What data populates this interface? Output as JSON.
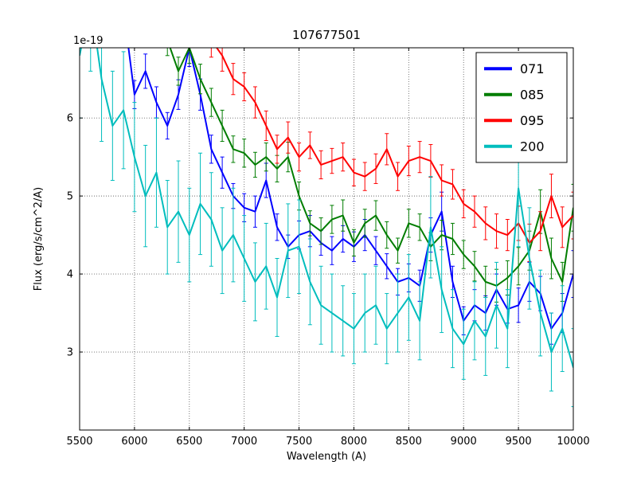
{
  "figure": {
    "background": "#ffffff",
    "frame_color": "#000000",
    "grid_color": "#6a6a6a"
  },
  "chart_data": {
    "type": "line",
    "title": "107677501",
    "xlabel": "Wavelength (A)",
    "ylabel": "Flux (erg/s/cm^2/A)",
    "y_offset_text": "1e-19",
    "y_unit_scale": "1e-19",
    "xlim": [
      5500,
      10000
    ],
    "ylim": [
      2.0,
      6.9
    ],
    "xticks": [
      5500,
      6000,
      6500,
      7000,
      7500,
      8000,
      8500,
      9000,
      9500,
      10000
    ],
    "yticks": [
      3,
      4,
      5,
      6
    ],
    "grid": true,
    "error_bars": true,
    "legend": {
      "position": "upper right",
      "entries": [
        "071",
        "085",
        "095",
        "200"
      ]
    },
    "series": [
      {
        "name": "071",
        "color": "#0000ff",
        "x": [
          5900,
          6000,
          6100,
          6200,
          6300,
          6400,
          6500,
          6600,
          6700,
          6800,
          6900,
          7000,
          7100,
          7200,
          7300,
          7400,
          7500,
          7600,
          7700,
          7800,
          7900,
          8000,
          8100,
          8200,
          8300,
          8400,
          8500,
          8600,
          8700,
          8800,
          8900,
          9000,
          9100,
          9200,
          9300,
          9400,
          9500,
          9600,
          9700,
          9800,
          9900,
          10000
        ],
        "y": [
          7.4,
          6.3,
          6.6,
          6.2,
          5.9,
          6.3,
          6.9,
          6.3,
          5.6,
          5.3,
          5.0,
          4.85,
          4.8,
          5.2,
          4.6,
          4.35,
          4.5,
          4.55,
          4.4,
          4.3,
          4.45,
          4.35,
          4.5,
          4.3,
          4.1,
          3.9,
          3.95,
          3.85,
          4.5,
          4.8,
          3.9,
          3.4,
          3.6,
          3.5,
          3.8,
          3.55,
          3.6,
          3.9,
          3.75,
          3.3,
          3.5,
          4.0
        ],
        "yerr": [
          0.2,
          0.18,
          0.22,
          0.2,
          0.17,
          0.19,
          0.24,
          0.2,
          0.18,
          0.2,
          0.16,
          0.18,
          0.2,
          0.22,
          0.17,
          0.15,
          0.18,
          0.2,
          0.16,
          0.18,
          0.17,
          0.19,
          0.2,
          0.18,
          0.16,
          0.17,
          0.18,
          0.2,
          0.22,
          0.25,
          0.2,
          0.18,
          0.2,
          0.22,
          0.2,
          0.18,
          0.22,
          0.25,
          0.22,
          0.2,
          0.25,
          0.3
        ]
      },
      {
        "name": "085",
        "color": "#007d00",
        "x": [
          6000,
          6100,
          6200,
          6300,
          6400,
          6500,
          6600,
          6700,
          6800,
          6900,
          7000,
          7100,
          7200,
          7300,
          7400,
          7500,
          7600,
          7700,
          7800,
          7900,
          8000,
          8100,
          8200,
          8300,
          8400,
          8500,
          8600,
          8700,
          8800,
          8900,
          9000,
          9100,
          9200,
          9300,
          9400,
          9500,
          9600,
          9700,
          9800,
          9900,
          10000
        ],
        "y": [
          7.5,
          7.2,
          7.6,
          7.0,
          6.6,
          6.9,
          6.5,
          6.2,
          5.9,
          5.6,
          5.55,
          5.4,
          5.5,
          5.35,
          5.5,
          5.0,
          4.65,
          4.55,
          4.7,
          4.75,
          4.4,
          4.65,
          4.75,
          4.5,
          4.3,
          4.65,
          4.6,
          4.35,
          4.5,
          4.45,
          4.25,
          4.1,
          3.9,
          3.85,
          3.95,
          4.1,
          4.3,
          4.8,
          4.2,
          3.9,
          4.85
        ],
        "yerr": [
          0.22,
          0.2,
          0.25,
          0.2,
          0.18,
          0.2,
          0.19,
          0.18,
          0.2,
          0.17,
          0.18,
          0.16,
          0.18,
          0.17,
          0.19,
          0.18,
          0.16,
          0.17,
          0.18,
          0.2,
          0.17,
          0.18,
          0.19,
          0.17,
          0.16,
          0.18,
          0.17,
          0.18,
          0.19,
          0.2,
          0.18,
          0.19,
          0.2,
          0.21,
          0.22,
          0.24,
          0.25,
          0.28,
          0.26,
          0.25,
          0.3
        ]
      },
      {
        "name": "095",
        "color": "#ff0000",
        "x": [
          6600,
          6700,
          6800,
          6900,
          7000,
          7100,
          7200,
          7300,
          7400,
          7500,
          7600,
          7700,
          7800,
          7900,
          8000,
          8100,
          8200,
          8300,
          8400,
          8500,
          8600,
          8700,
          8800,
          8900,
          9000,
          9100,
          9200,
          9300,
          9400,
          9500,
          9600,
          9700,
          9800,
          9900,
          10000
        ],
        "y": [
          7.3,
          7.0,
          6.8,
          6.5,
          6.4,
          6.2,
          5.9,
          5.6,
          5.75,
          5.5,
          5.65,
          5.4,
          5.45,
          5.5,
          5.3,
          5.25,
          5.35,
          5.6,
          5.25,
          5.45,
          5.5,
          5.45,
          5.2,
          5.15,
          4.9,
          4.8,
          4.65,
          4.55,
          4.5,
          4.65,
          4.4,
          4.55,
          5.0,
          4.6,
          4.75
        ],
        "yerr": [
          0.25,
          0.22,
          0.2,
          0.2,
          0.18,
          0.2,
          0.19,
          0.18,
          0.2,
          0.18,
          0.17,
          0.18,
          0.16,
          0.18,
          0.17,
          0.18,
          0.19,
          0.2,
          0.18,
          0.19,
          0.2,
          0.21,
          0.2,
          0.19,
          0.18,
          0.2,
          0.21,
          0.22,
          0.2,
          0.22,
          0.24,
          0.25,
          0.28,
          0.26,
          0.3
        ]
      },
      {
        "name": "200",
        "color": "#00bdbd",
        "x": [
          5500,
          5600,
          5700,
          5800,
          5900,
          6000,
          6100,
          6200,
          6300,
          6400,
          6500,
          6600,
          6700,
          6800,
          6900,
          7000,
          7100,
          7200,
          7300,
          7400,
          7500,
          7600,
          7700,
          7800,
          7900,
          8000,
          8100,
          8200,
          8300,
          8400,
          8500,
          8600,
          8700,
          8800,
          8900,
          9000,
          9100,
          9200,
          9300,
          9400,
          9500,
          9600,
          9700,
          9800,
          9900,
          10000
        ],
        "y": [
          6.8,
          7.5,
          6.5,
          5.9,
          6.1,
          5.5,
          5.0,
          5.3,
          4.6,
          4.8,
          4.5,
          4.9,
          4.7,
          4.3,
          4.5,
          4.2,
          3.9,
          4.1,
          3.7,
          4.3,
          4.35,
          3.9,
          3.6,
          3.5,
          3.4,
          3.3,
          3.5,
          3.6,
          3.3,
          3.5,
          3.7,
          3.4,
          4.6,
          3.8,
          3.3,
          3.1,
          3.4,
          3.2,
          3.6,
          3.3,
          5.1,
          4.2,
          3.5,
          3.0,
          3.3,
          2.8
        ],
        "yerr": [
          0.8,
          0.9,
          0.8,
          0.7,
          0.75,
          0.7,
          0.65,
          0.7,
          0.6,
          0.65,
          0.6,
          0.65,
          0.6,
          0.55,
          0.6,
          0.55,
          0.5,
          0.55,
          0.5,
          0.6,
          0.6,
          0.55,
          0.5,
          0.5,
          0.45,
          0.45,
          0.5,
          0.5,
          0.45,
          0.5,
          0.55,
          0.5,
          0.65,
          0.55,
          0.5,
          0.45,
          0.5,
          0.5,
          0.55,
          0.5,
          0.75,
          0.65,
          0.55,
          0.5,
          0.55,
          0.5
        ]
      }
    ]
  }
}
